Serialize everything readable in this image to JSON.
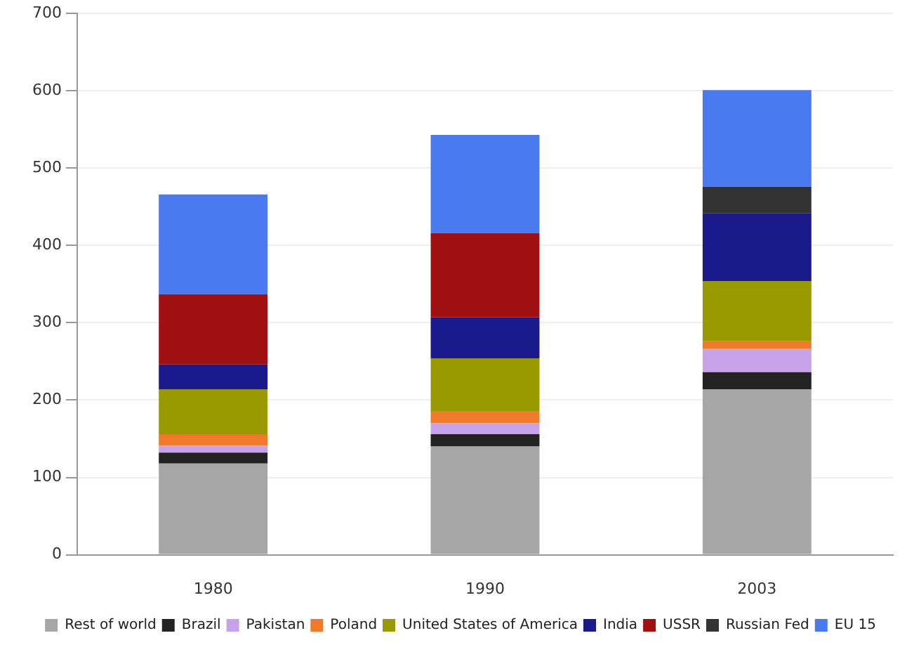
{
  "chart_data": {
    "type": "bar",
    "stacked": true,
    "categories": [
      "1980",
      "1990",
      "2003"
    ],
    "series": [
      {
        "name": "Rest of world",
        "color": "#a6a6a6",
        "values": [
          118,
          140,
          214
        ]
      },
      {
        "name": "Brazil",
        "color": "#222222",
        "values": [
          14,
          16,
          22
        ]
      },
      {
        "name": "Pakistan",
        "color": "#c8a2e8",
        "values": [
          9,
          14,
          30
        ]
      },
      {
        "name": "Poland",
        "color": "#f07a2a",
        "values": [
          15,
          16,
          10
        ]
      },
      {
        "name": "United States of America",
        "color": "#999900",
        "values": [
          58,
          68,
          78
        ]
      },
      {
        "name": "India",
        "color": "#1a1a8c",
        "values": [
          32,
          53,
          88
        ]
      },
      {
        "name": "USSR",
        "color": "#a01010",
        "values": [
          91,
          109,
          null
        ]
      },
      {
        "name": "Russian Fed",
        "color": "#333333",
        "values": [
          null,
          null,
          34
        ]
      },
      {
        "name": "EU 15",
        "color": "#4a7af0",
        "values": [
          129,
          127,
          125
        ]
      }
    ],
    "ylim": [
      0,
      700
    ],
    "yticks": [
      0,
      100,
      200,
      300,
      400,
      500,
      600,
      700
    ],
    "grid": "y",
    "legend": "bottom"
  }
}
